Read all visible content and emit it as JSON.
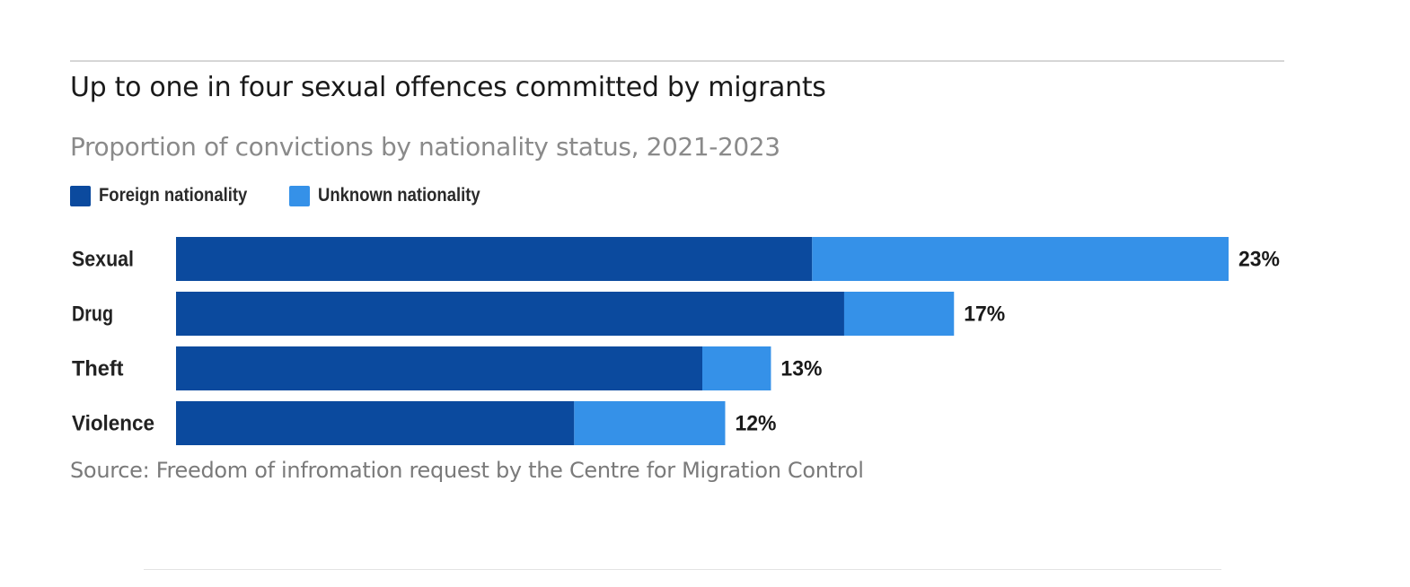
{
  "colors": {
    "foreign": "#0b4a9e",
    "unknown": "#3591e8",
    "text": "#1a1a1a"
  },
  "chart_data": {
    "type": "bar",
    "orientation": "horizontal",
    "stacked": true,
    "title": "Up to one in four sexual offences committed by migrants",
    "subtitle": "Proportion of convictions by nationality status, 2021-2023",
    "source": "Source: Freedom of infromation request by the Centre for Migration Control",
    "categories": [
      "Sexual",
      "Drug",
      "Theft",
      "Violence"
    ],
    "series": [
      {
        "name": "Foreign nationality",
        "color": "#0b4a9e",
        "values": [
          13.9,
          14.6,
          11.5,
          8.7
        ]
      },
      {
        "name": "Unknown nationality",
        "color": "#3591e8",
        "values": [
          9.1,
          2.4,
          1.5,
          3.3
        ]
      }
    ],
    "total_labels": [
      "23%",
      "17%",
      "13%",
      "12%"
    ],
    "xlim": [
      0,
      23
    ],
    "grid": false,
    "legend": "top-left"
  }
}
